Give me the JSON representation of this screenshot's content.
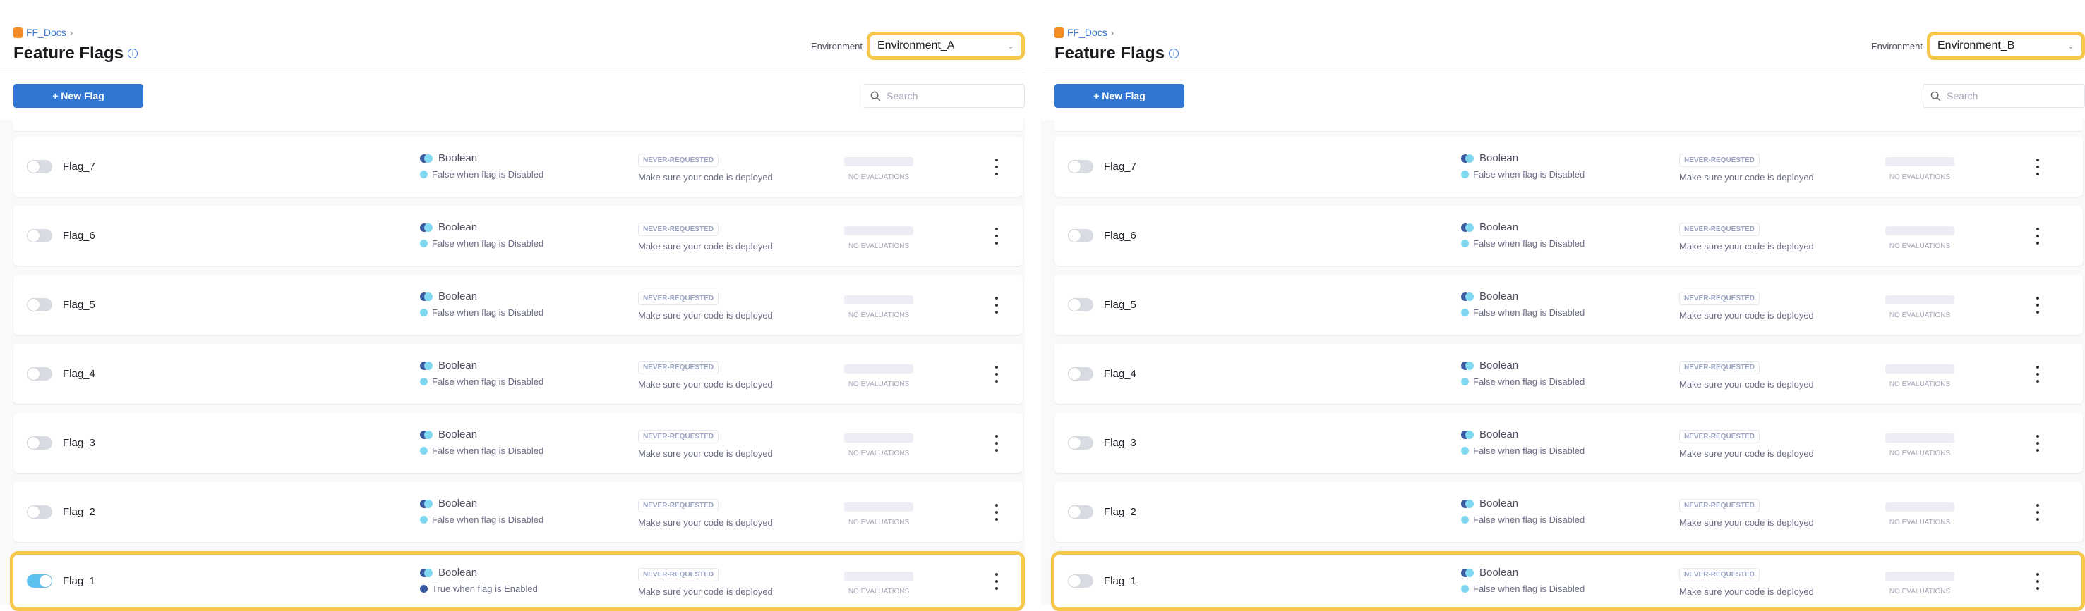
{
  "panels": [
    {
      "breadcrumb": "FF_Docs",
      "title": "Feature Flags",
      "environment_label": "Environment",
      "environment": "Environment_A",
      "new_flag_label": "+ New Flag",
      "search_placeholder": "Search",
      "highlight_color": "#f5c84c",
      "flags": [
        {
          "name": "Flag_7",
          "enabled": false,
          "type": "Boolean",
          "description": "False when flag is Disabled",
          "status": "NEVER-REQUESTED",
          "hint": "Make sure your code is deployed",
          "evaluations": "NO EVALUATIONS",
          "highlighted": false
        },
        {
          "name": "Flag_6",
          "enabled": false,
          "type": "Boolean",
          "description": "False when flag is Disabled",
          "status": "NEVER-REQUESTED",
          "hint": "Make sure your code is deployed",
          "evaluations": "NO EVALUATIONS",
          "highlighted": false
        },
        {
          "name": "Flag_5",
          "enabled": false,
          "type": "Boolean",
          "description": "False when flag is Disabled",
          "status": "NEVER-REQUESTED",
          "hint": "Make sure your code is deployed",
          "evaluations": "NO EVALUATIONS",
          "highlighted": false
        },
        {
          "name": "Flag_4",
          "enabled": false,
          "type": "Boolean",
          "description": "False when flag is Disabled",
          "status": "NEVER-REQUESTED",
          "hint": "Make sure your code is deployed",
          "evaluations": "NO EVALUATIONS",
          "highlighted": false
        },
        {
          "name": "Flag_3",
          "enabled": false,
          "type": "Boolean",
          "description": "False when flag is Disabled",
          "status": "NEVER-REQUESTED",
          "hint": "Make sure your code is deployed",
          "evaluations": "NO EVALUATIONS",
          "highlighted": false
        },
        {
          "name": "Flag_2",
          "enabled": false,
          "type": "Boolean",
          "description": "False when flag is Disabled",
          "status": "NEVER-REQUESTED",
          "hint": "Make sure your code is deployed",
          "evaluations": "NO EVALUATIONS",
          "highlighted": false
        },
        {
          "name": "Flag_1",
          "enabled": true,
          "type": "Boolean",
          "description": "True when flag is Enabled",
          "status": "NEVER-REQUESTED",
          "hint": "Make sure your code is deployed",
          "evaluations": "NO EVALUATIONS",
          "highlighted": true
        }
      ]
    },
    {
      "breadcrumb": "FF_Docs",
      "title": "Feature Flags",
      "environment_label": "Environment",
      "environment": "Environment_B",
      "new_flag_label": "+ New Flag",
      "search_placeholder": "Search",
      "highlight_color": "#f5c84c",
      "flags": [
        {
          "name": "Flag_7",
          "enabled": false,
          "type": "Boolean",
          "description": "False when flag is Disabled",
          "status": "NEVER-REQUESTED",
          "hint": "Make sure your code is deployed",
          "evaluations": "NO EVALUATIONS",
          "highlighted": false
        },
        {
          "name": "Flag_6",
          "enabled": false,
          "type": "Boolean",
          "description": "False when flag is Disabled",
          "status": "NEVER-REQUESTED",
          "hint": "Make sure your code is deployed",
          "evaluations": "NO EVALUATIONS",
          "highlighted": false
        },
        {
          "name": "Flag_5",
          "enabled": false,
          "type": "Boolean",
          "description": "False when flag is Disabled",
          "status": "NEVER-REQUESTED",
          "hint": "Make sure your code is deployed",
          "evaluations": "NO EVALUATIONS",
          "highlighted": false
        },
        {
          "name": "Flag_4",
          "enabled": false,
          "type": "Boolean",
          "description": "False when flag is Disabled",
          "status": "NEVER-REQUESTED",
          "hint": "Make sure your code is deployed",
          "evaluations": "NO EVALUATIONS",
          "highlighted": false
        },
        {
          "name": "Flag_3",
          "enabled": false,
          "type": "Boolean",
          "description": "False when flag is Disabled",
          "status": "NEVER-REQUESTED",
          "hint": "Make sure your code is deployed",
          "evaluations": "NO EVALUATIONS",
          "highlighted": false
        },
        {
          "name": "Flag_2",
          "enabled": false,
          "type": "Boolean",
          "description": "False when flag is Disabled",
          "status": "NEVER-REQUESTED",
          "hint": "Make sure your code is deployed",
          "evaluations": "NO EVALUATIONS",
          "highlighted": false
        },
        {
          "name": "Flag_1",
          "enabled": false,
          "type": "Boolean",
          "description": "False when flag is Disabled",
          "status": "NEVER-REQUESTED",
          "hint": "Make sure your code is deployed",
          "evaluations": "NO EVALUATIONS",
          "highlighted": true
        }
      ]
    }
  ]
}
